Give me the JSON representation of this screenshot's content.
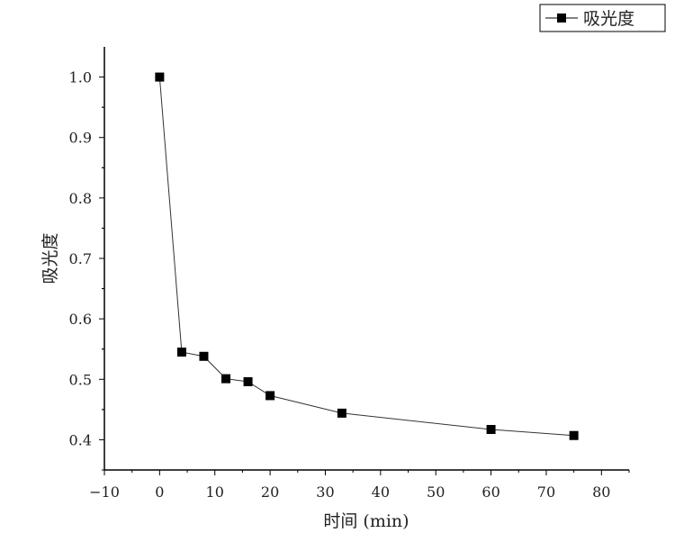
{
  "chart_data": {
    "type": "line",
    "title": "",
    "xlabel": "时间 (min)",
    "ylabel": "吸光度",
    "xlim": [
      -10,
      85
    ],
    "ylim": [
      0.35,
      1.05
    ],
    "xticks": [
      "-10",
      "0",
      "10",
      "20",
      "30",
      "40",
      "50",
      "60",
      "70",
      "80"
    ],
    "yticks": [
      "0.4",
      "0.5",
      "0.6",
      "0.7",
      "0.8",
      "0.9",
      "1.0"
    ],
    "legend": {
      "position": "top-right",
      "entries": [
        "吸光度"
      ]
    },
    "series": [
      {
        "name": "吸光度",
        "marker": "square",
        "color": "#000000",
        "x": [
          0,
          4,
          8,
          12,
          16,
          20,
          33,
          60,
          75
        ],
        "y": [
          1.0,
          0.545,
          0.538,
          0.501,
          0.496,
          0.473,
          0.444,
          0.417,
          0.407
        ]
      }
    ]
  }
}
